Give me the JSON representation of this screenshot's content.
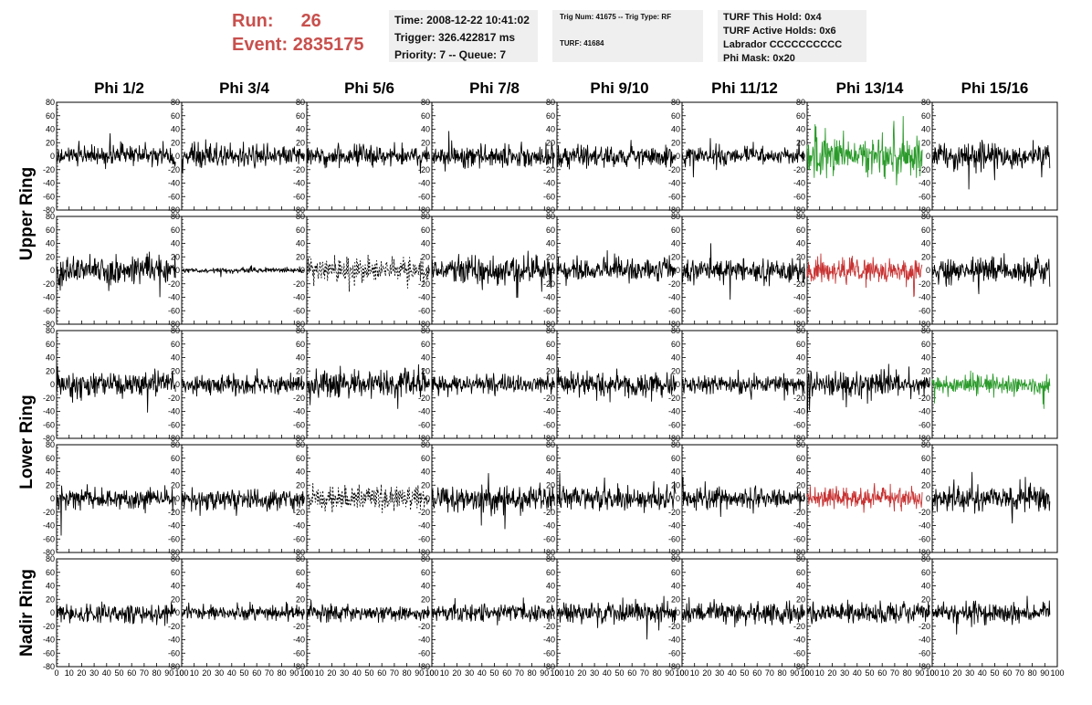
{
  "header": {
    "run_label": "Run:",
    "run_value": "26",
    "event_label": "Event:",
    "event_value": "2835175",
    "time_line": "Time: 2008-12-22 10:41:02",
    "trigger_line": "Trigger: 326.422817 ms",
    "priority_line": "Priority: 7 -- Queue: 7",
    "trig_num_line": "Trig Num: 41675 -- Trig Type: RF",
    "turf_line": "TURF: 41684",
    "turf_hold_line": "TURF This Hold: 0x4",
    "turf_active_line": "TURF Active Holds: 0x6",
    "labrador_line": "Labrador CCCCCCCCCC",
    "phi_mask_line": "Phi Mask: 0x20"
  },
  "chart_data": {
    "type": "line",
    "columns": [
      "Phi 1/2",
      "Phi 3/4",
      "Phi 5/6",
      "Phi 7/8",
      "Phi 9/10",
      "Phi 11/12",
      "Phi 13/14",
      "Phi 15/16"
    ],
    "rings": [
      {
        "name": "Upper Ring",
        "rows": 2
      },
      {
        "name": "Lower Ring",
        "rows": 2
      },
      {
        "name": "Nadir Ring",
        "rows": 1
      }
    ],
    "xlim": [
      0,
      100
    ],
    "xticks": [
      0,
      10,
      20,
      30,
      40,
      50,
      60,
      70,
      80,
      90,
      100
    ],
    "ylim": [
      -80,
      80
    ],
    "yticks": [
      -80,
      -60,
      -40,
      -20,
      0,
      20,
      40,
      60,
      80
    ],
    "colors": {
      "normal": "#000000",
      "green": "#2a9a2a",
      "red": "#c83232"
    },
    "panels": [
      [
        {
          "amp": 12,
          "color": "normal",
          "style": "solid",
          "xmax": 95
        },
        {
          "amp": 13,
          "color": "normal",
          "style": "solid",
          "xmax": 98
        },
        {
          "amp": 12,
          "color": "normal",
          "style": "solid",
          "xmax": 98
        },
        {
          "amp": 12,
          "color": "normal",
          "style": "solid",
          "xmax": 98
        },
        {
          "amp": 13,
          "color": "normal",
          "style": "solid",
          "xmax": 95
        },
        {
          "amp": 10,
          "color": "normal",
          "style": "solid",
          "xmax": 98
        },
        {
          "amp": 22,
          "color": "green",
          "style": "solid",
          "xmax": 92
        },
        {
          "amp": 15,
          "color": "normal",
          "style": "solid",
          "xmax": 94
        }
      ],
      [
        {
          "amp": 15,
          "color": "normal",
          "style": "solid",
          "xmax": 95
        },
        {
          "amp": 3,
          "color": "normal",
          "style": "solid",
          "xmax": 98
        },
        {
          "amp": 15,
          "color": "normal",
          "style": "dashed",
          "xmax": 98
        },
        {
          "amp": 15,
          "color": "normal",
          "style": "solid",
          "xmax": 98
        },
        {
          "amp": 14,
          "color": "normal",
          "style": "solid",
          "xmax": 95
        },
        {
          "amp": 14,
          "color": "normal",
          "style": "solid",
          "xmax": 98
        },
        {
          "amp": 14,
          "color": "red",
          "style": "solid",
          "xmax": 92
        },
        {
          "amp": 15,
          "color": "normal",
          "style": "solid",
          "xmax": 94
        }
      ],
      [
        {
          "amp": 14,
          "color": "normal",
          "style": "solid",
          "xmax": 95
        },
        {
          "amp": 11,
          "color": "normal",
          "style": "solid",
          "xmax": 98
        },
        {
          "amp": 16,
          "color": "normal",
          "style": "solid",
          "xmax": 98
        },
        {
          "amp": 11,
          "color": "normal",
          "style": "solid",
          "xmax": 98
        },
        {
          "amp": 13,
          "color": "normal",
          "style": "solid",
          "xmax": 95
        },
        {
          "amp": 11,
          "color": "normal",
          "style": "solid",
          "xmax": 98
        },
        {
          "amp": 15,
          "color": "normal",
          "style": "solid",
          "xmax": 98
        },
        {
          "amp": 10,
          "color": "green",
          "style": "solid",
          "xmax": 94
        }
      ],
      [
        {
          "amp": 13,
          "color": "normal",
          "style": "solid",
          "xmax": 95
        },
        {
          "amp": 12,
          "color": "normal",
          "style": "solid",
          "xmax": 98
        },
        {
          "amp": 13,
          "color": "normal",
          "style": "dashed",
          "xmax": 98
        },
        {
          "amp": 15,
          "color": "normal",
          "style": "solid",
          "xmax": 98
        },
        {
          "amp": 13,
          "color": "normal",
          "style": "solid",
          "xmax": 95
        },
        {
          "amp": 12,
          "color": "normal",
          "style": "solid",
          "xmax": 98
        },
        {
          "amp": 12,
          "color": "red",
          "style": "solid",
          "xmax": 92
        },
        {
          "amp": 14,
          "color": "normal",
          "style": "solid",
          "xmax": 94
        }
      ],
      [
        {
          "amp": 12,
          "color": "normal",
          "style": "solid",
          "xmax": 95
        },
        {
          "amp": 9,
          "color": "normal",
          "style": "solid",
          "xmax": 98
        },
        {
          "amp": 9,
          "color": "normal",
          "style": "solid",
          "xmax": 98
        },
        {
          "amp": 9,
          "color": "normal",
          "style": "solid",
          "xmax": 98
        },
        {
          "amp": 12,
          "color": "normal",
          "style": "solid",
          "xmax": 95
        },
        {
          "amp": 13,
          "color": "normal",
          "style": "solid",
          "xmax": 98
        },
        {
          "amp": 11,
          "color": "normal",
          "style": "solid",
          "xmax": 98
        },
        {
          "amp": 11,
          "color": "normal",
          "style": "solid",
          "xmax": 94
        }
      ]
    ]
  }
}
